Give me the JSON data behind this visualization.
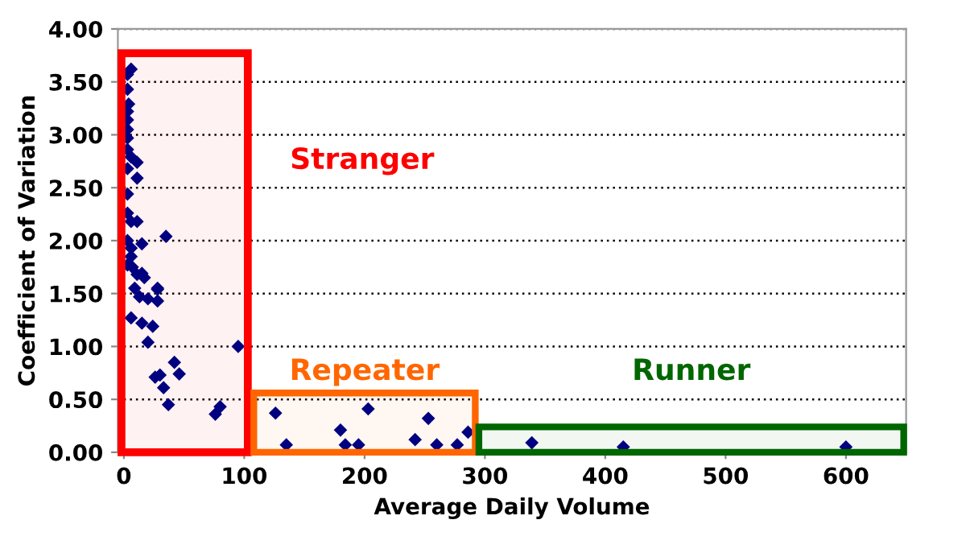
{
  "chart_data": {
    "type": "scatter",
    "xlabel": "Average Daily Volume",
    "ylabel": "Coefficient of Variation",
    "x": [
      6,
      3,
      3,
      4,
      3,
      3,
      3,
      3,
      3,
      6,
      11,
      3,
      11,
      3,
      3,
      6,
      11,
      35,
      3,
      15,
      6,
      7,
      15,
      28,
      6,
      3,
      11,
      17,
      9,
      28,
      13,
      20,
      28,
      6,
      15,
      24,
      20,
      95,
      42,
      46,
      26,
      30,
      33,
      37,
      80,
      76,
      126,
      135,
      180,
      184,
      195,
      203,
      242,
      253,
      260,
      277,
      286,
      339,
      415,
      600
    ],
    "series": [
      {
        "color": "#000080",
        "values": [
          3.62,
          3.57,
          3.43,
          3.29,
          3.22,
          3.14,
          3.05,
          2.97,
          2.86,
          2.79,
          2.74,
          2.68,
          2.59,
          2.44,
          2.26,
          2.18,
          2.18,
          2.04,
          2.0,
          1.97,
          1.85,
          1.75,
          1.69,
          1.54,
          1.93,
          1.77,
          1.68,
          1.65,
          1.55,
          1.55,
          1.47,
          1.45,
          1.43,
          1.27,
          1.22,
          1.19,
          1.04,
          1.0,
          0.85,
          0.74,
          0.71,
          0.73,
          0.61,
          0.45,
          0.43,
          0.36,
          0.37,
          0.07,
          0.21,
          0.07,
          0.07,
          0.41,
          0.12,
          0.32,
          0.07,
          0.07,
          0.19,
          0.09,
          0.05,
          0.05
        ]
      }
    ],
    "marker": "diamond",
    "xlim": [
      -5,
      650
    ],
    "xticks": [
      0,
      100,
      200,
      300,
      400,
      500,
      600
    ],
    "ylim": [
      0,
      4
    ],
    "yticks": [
      {
        "value": 0,
        "label": "0.00"
      },
      {
        "value": 0.5,
        "label": "0.50"
      },
      {
        "value": 1,
        "label": "1.00"
      },
      {
        "value": 1.5,
        "label": "1.50"
      },
      {
        "value": 2,
        "label": "2.00"
      },
      {
        "value": 2.5,
        "label": "2.50"
      },
      {
        "value": 3,
        "label": "3.00"
      },
      {
        "value": 3.5,
        "label": "3.50"
      },
      {
        "value": 4,
        "label": "4.00"
      }
    ],
    "grid": "y",
    "bands": [
      {
        "axis": "x",
        "from": -2,
        "to": 103,
        "color": "#ff0000",
        "label": "Stranger"
      },
      {
        "axis": "x",
        "from": 108,
        "to": 292,
        "color": "#ff6600",
        "label": "Repeater"
      },
      {
        "axis": "x",
        "from": 295,
        "to": 648,
        "color": "#006600",
        "label": "Runner"
      }
    ]
  }
}
